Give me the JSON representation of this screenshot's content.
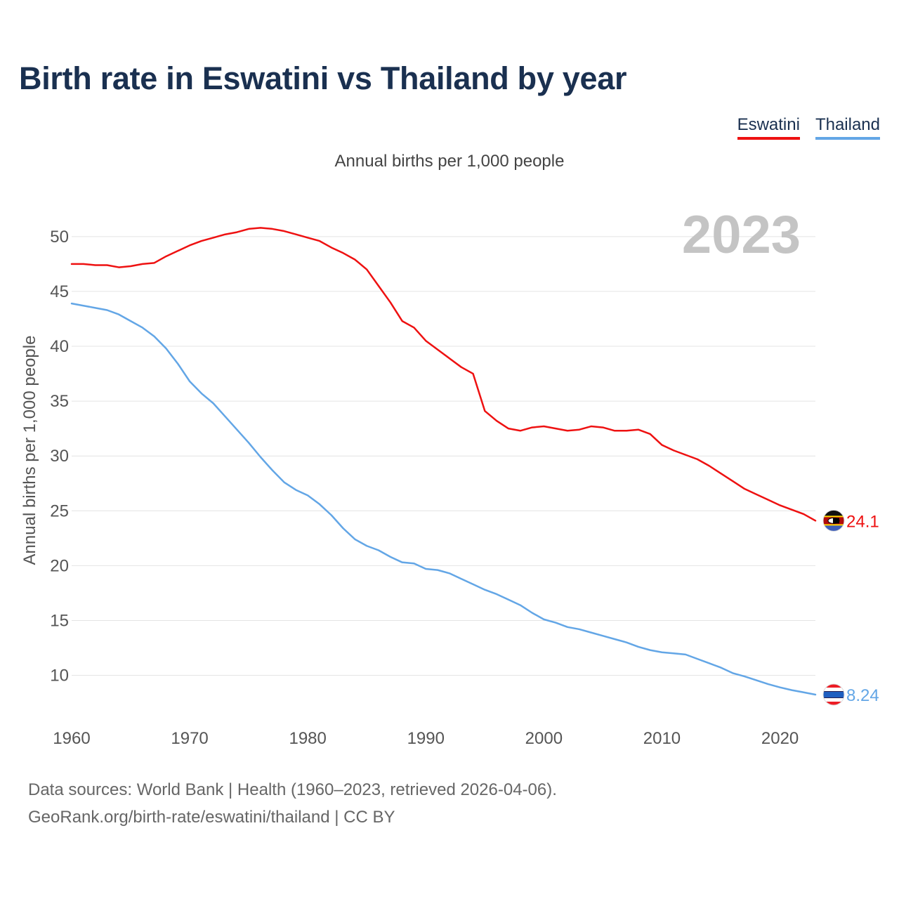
{
  "header": {
    "title": "Birth rate in Eswatini vs Thailand by year",
    "subtitle": "Annual births per 1,000 people"
  },
  "legend": {
    "items": [
      {
        "label": "Eswatini",
        "color": "#ee1111"
      },
      {
        "label": "Thailand",
        "color": "#63a6e6"
      }
    ]
  },
  "year_label": "2023",
  "chart_data": {
    "type": "line",
    "title": "Birth rate in Eswatini vs Thailand by year",
    "subtitle": "Annual births per 1,000 people",
    "xlabel": "",
    "ylabel": "Annual births per 1,000 people",
    "xlim": [
      1960,
      2023
    ],
    "ylim": [
      6,
      53
    ],
    "x_ticks": [
      1960,
      1970,
      1980,
      1990,
      2000,
      2010,
      2020
    ],
    "y_ticks": [
      10,
      15,
      20,
      25,
      30,
      35,
      40,
      45,
      50
    ],
    "grid": true,
    "legend": "top-right",
    "x": [
      1960,
      1961,
      1962,
      1963,
      1964,
      1965,
      1966,
      1967,
      1968,
      1969,
      1970,
      1971,
      1972,
      1973,
      1974,
      1975,
      1976,
      1977,
      1978,
      1979,
      1980,
      1981,
      1982,
      1983,
      1984,
      1985,
      1986,
      1987,
      1988,
      1989,
      1990,
      1991,
      1992,
      1993,
      1994,
      1995,
      1996,
      1997,
      1998,
      1999,
      2000,
      2001,
      2002,
      2003,
      2004,
      2005,
      2006,
      2007,
      2008,
      2009,
      2010,
      2011,
      2012,
      2013,
      2014,
      2015,
      2016,
      2017,
      2018,
      2019,
      2020,
      2021,
      2022,
      2023
    ],
    "series": [
      {
        "name": "Eswatini",
        "color": "#ee1111",
        "end_label": "24.1",
        "values": [
          47.5,
          47.5,
          47.4,
          47.4,
          47.2,
          47.3,
          47.5,
          47.6,
          48.2,
          48.7,
          49.2,
          49.6,
          49.9,
          50.2,
          50.4,
          50.7,
          50.8,
          50.7,
          50.5,
          50.2,
          49.9,
          49.6,
          49.0,
          48.5,
          47.9,
          47.0,
          45.5,
          44.0,
          42.3,
          41.7,
          40.5,
          39.7,
          38.9,
          38.1,
          37.5,
          34.1,
          33.2,
          32.5,
          32.3,
          32.6,
          32.7,
          32.5,
          32.3,
          32.4,
          32.7,
          32.6,
          32.3,
          32.3,
          32.4,
          32.0,
          31.0,
          30.5,
          30.1,
          29.7,
          29.1,
          28.4,
          27.7,
          27.0,
          26.5,
          26.0,
          25.5,
          25.1,
          24.7,
          24.1
        ]
      },
      {
        "name": "Thailand",
        "color": "#63a6e6",
        "end_label": "8.24",
        "values": [
          43.9,
          43.7,
          43.5,
          43.3,
          42.9,
          42.3,
          41.7,
          40.9,
          39.8,
          38.4,
          36.8,
          35.7,
          34.8,
          33.6,
          32.4,
          31.2,
          29.9,
          28.7,
          27.6,
          26.9,
          26.4,
          25.6,
          24.6,
          23.4,
          22.4,
          21.8,
          21.4,
          20.8,
          20.3,
          20.2,
          19.7,
          19.6,
          19.3,
          18.8,
          18.3,
          17.8,
          17.4,
          16.9,
          16.4,
          15.7,
          15.1,
          14.8,
          14.4,
          14.2,
          13.9,
          13.6,
          13.3,
          13.0,
          12.6,
          12.3,
          12.1,
          12.0,
          11.9,
          11.5,
          11.1,
          10.7,
          10.2,
          9.9,
          9.55,
          9.2,
          8.9,
          8.65,
          8.45,
          8.24
        ]
      }
    ],
    "sources": "Data sources: World Bank | Health (1960–2023, retrieved 2026-04-06).",
    "credit": "GeoRank.org/birth-rate/eswatini/thailand | CC BY"
  }
}
